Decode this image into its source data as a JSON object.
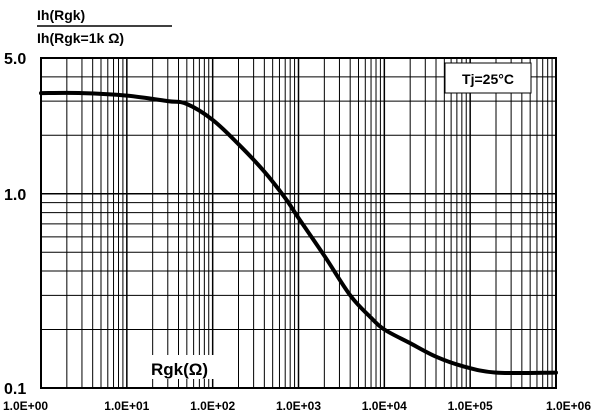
{
  "chart_data": {
    "type": "line",
    "title": "",
    "ylabel_numerator": "Ih(Rgk)",
    "ylabel_denominator": "Ih(Rgk=1k Ω)",
    "xlabel": "Rgk(Ω)",
    "x_scale": "log",
    "y_scale": "log",
    "xlim": [
      1,
      1000000
    ],
    "ylim": [
      0.1,
      5.0
    ],
    "grid": true,
    "annotation": "Tj=25°C",
    "x_ticks": [
      {
        "value": 1,
        "label": "1.0E+00"
      },
      {
        "value": 10,
        "label": "1.0E+01"
      },
      {
        "value": 100,
        "label": "1.0E+02"
      },
      {
        "value": 1000,
        "label": "1.0E+03"
      },
      {
        "value": 10000,
        "label": "1.0E+04"
      },
      {
        "value": 100000,
        "label": "1.0E+05"
      },
      {
        "value": 1000000,
        "label": "1.0E+06"
      }
    ],
    "y_ticks": [
      {
        "value": 0.1,
        "label": "0.1"
      },
      {
        "value": 1.0,
        "label": "1.0"
      },
      {
        "value": 5.0,
        "label": "5.0"
      }
    ],
    "series": [
      {
        "line_color": "#000000",
        "points": [
          [
            1,
            3.3
          ],
          [
            3,
            3.3
          ],
          [
            10,
            3.2
          ],
          [
            30,
            3.0
          ],
          [
            50,
            2.9
          ],
          [
            100,
            2.4
          ],
          [
            200,
            1.8
          ],
          [
            400,
            1.3
          ],
          [
            700,
            0.95
          ],
          [
            1000,
            0.75
          ],
          [
            2000,
            0.48
          ],
          [
            4000,
            0.3
          ],
          [
            7000,
            0.23
          ],
          [
            10000,
            0.2
          ],
          [
            20000,
            0.17
          ],
          [
            40000,
            0.145
          ],
          [
            80000,
            0.13
          ],
          [
            200000,
            0.12
          ],
          [
            1000000,
            0.12
          ]
        ]
      }
    ]
  }
}
